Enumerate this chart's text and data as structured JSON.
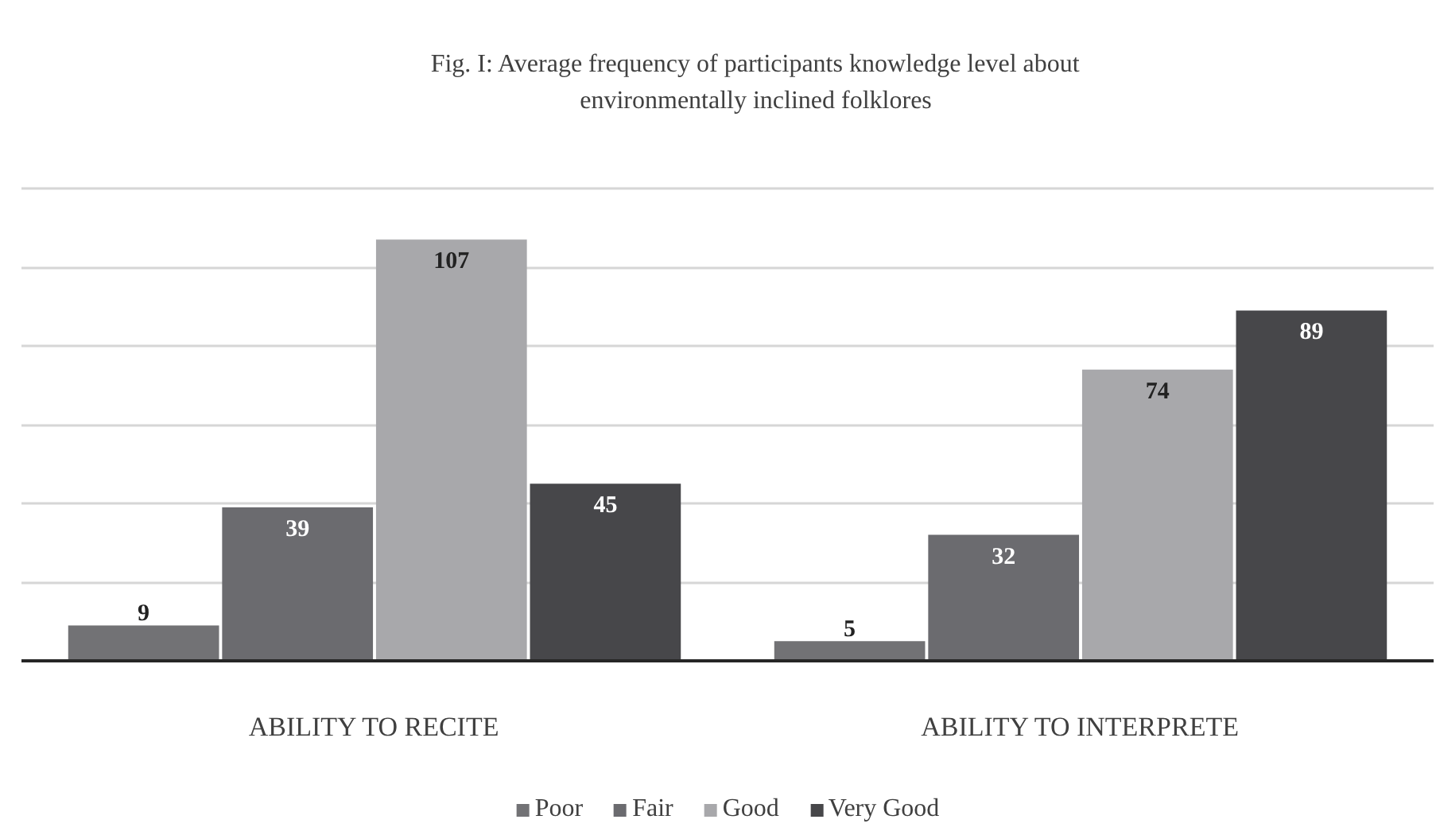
{
  "chart_data": {
    "type": "bar",
    "title": "Fig. I: Average frequency of participants knowledge level about environmentally inclined folklores",
    "categories": [
      "ABILITY TO RECITE",
      "ABILITY TO INTERPRETE"
    ],
    "series": [
      {
        "name": "Poor",
        "color": "#727275",
        "values": [
          9,
          5
        ]
      },
      {
        "name": "Fair",
        "color": "#6b6b6f",
        "values": [
          39,
          32
        ]
      },
      {
        "name": "Good",
        "color": "#a8a8ab",
        "values": [
          107,
          74
        ]
      },
      {
        "name": "Very Good",
        "color": "#47474a",
        "values": [
          45,
          89
        ]
      }
    ],
    "ylim": [
      0,
      120
    ],
    "yticks": [
      {
        "value": 0,
        "label": null
      },
      {
        "value": 20,
        "label": null
      },
      {
        "value": 40,
        "label": null
      },
      {
        "value": 60,
        "label": null
      },
      {
        "value": 80,
        "label": null
      },
      {
        "value": 100,
        "label": null
      },
      {
        "value": 120,
        "label": null
      }
    ],
    "grid": "y",
    "legend": "bottom",
    "tick_labels": "x",
    "data_labels": true
  }
}
